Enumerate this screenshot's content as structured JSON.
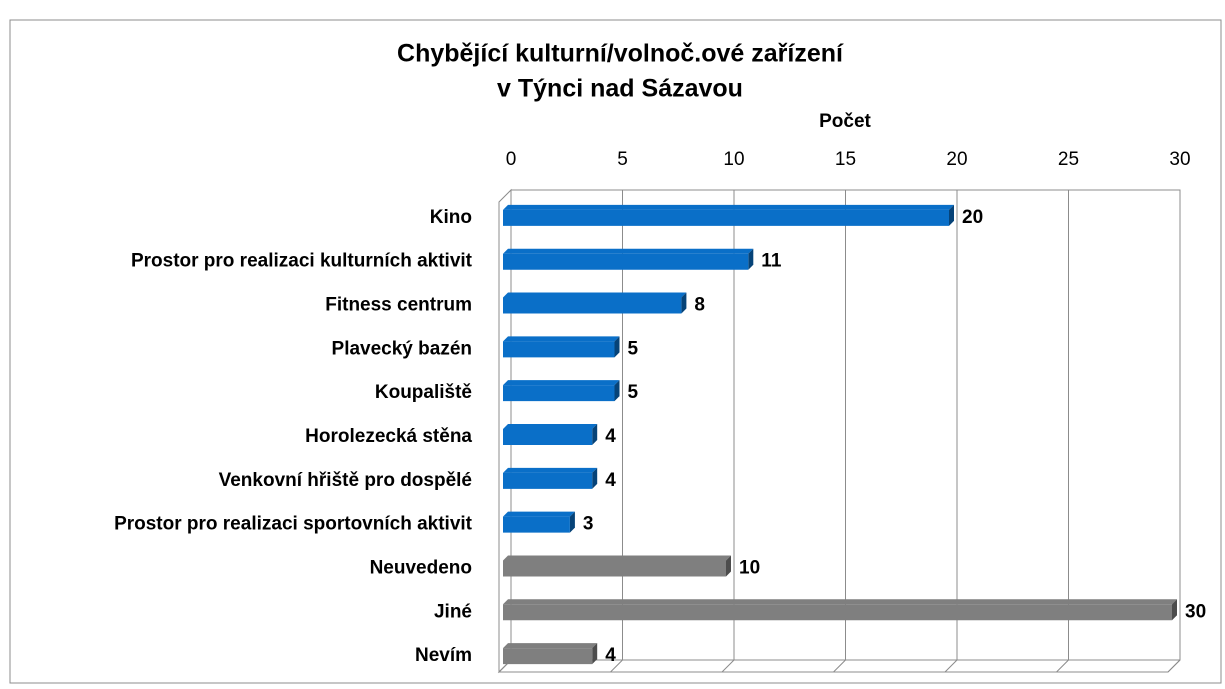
{
  "chart_data": {
    "type": "bar",
    "orientation": "horizontal",
    "title": [
      "Chybějící kulturní/volnoč.ové zařízení",
      "v Týnci nad Sázavou"
    ],
    "x_axis_label": "Počet",
    "categories": [
      "Kino",
      "Prostor pro realizaci kulturních aktivit",
      "Fitness centrum",
      "Plavecký bazén",
      "Koupaliště",
      "Horolezecká stěna",
      "Venkovní hřiště pro dospělé",
      "Prostor pro realizaci sportovních aktivit",
      "Neuvedeno",
      "Jiné",
      "Nevím"
    ],
    "values": [
      20,
      11,
      8,
      5,
      5,
      4,
      4,
      3,
      10,
      30,
      4
    ],
    "colors": [
      "#0a6fc8",
      "#0a6fc8",
      "#0a6fc8",
      "#0a6fc8",
      "#0a6fc8",
      "#0a6fc8",
      "#0a6fc8",
      "#0a6fc8",
      "#7f7f7f",
      "#7f7f7f",
      "#7f7f7f"
    ],
    "xlim": [
      0,
      30
    ],
    "xticks": [
      0,
      5,
      10,
      15,
      20,
      25,
      30
    ],
    "grid": true
  }
}
